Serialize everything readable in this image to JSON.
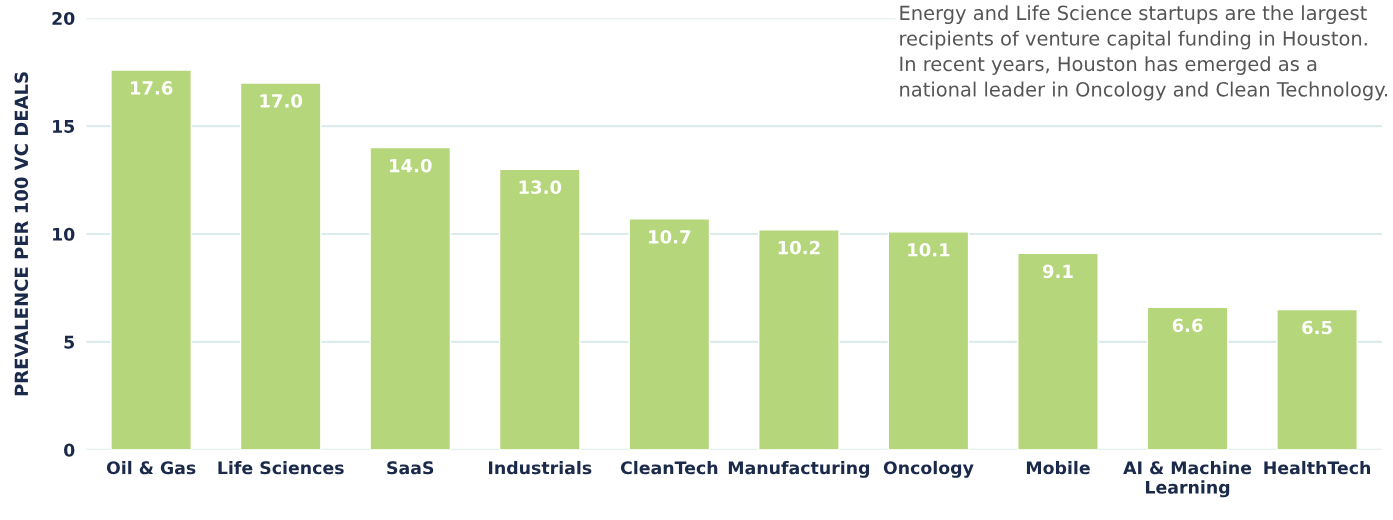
{
  "chart_data": {
    "type": "bar",
    "ylabel": "PREVALENCE PER 100 VC DEALS",
    "annotations": [
      "Energy and Life Science startups are the largest recipients of venture capital funding in Houston. In recent years, Houston has emerged as a national leader in Oncology and Clean Technology."
    ],
    "categories": [
      "Oil & Gas",
      "Life Sciences",
      "SaaS",
      "Industrials",
      "CleanTech",
      "Manufacturing",
      "Oncology",
      "Mobile",
      "AI & Machine Learning",
      "HealthTech"
    ],
    "values": [
      17.6,
      17.0,
      14.0,
      13.0,
      10.7,
      10.2,
      10.1,
      9.1,
      6.6,
      6.5
    ],
    "value_labels": [
      "17.6",
      "17.0",
      "14.0",
      "13.0",
      "10.7",
      "10.2",
      "10.1",
      "9.1",
      "6.6",
      "6.5"
    ],
    "color": "#b5d67a",
    "ylim": [
      0,
      20
    ],
    "yticks": [
      0,
      5,
      10,
      15,
      20
    ],
    "grid": "y",
    "legend": false
  }
}
